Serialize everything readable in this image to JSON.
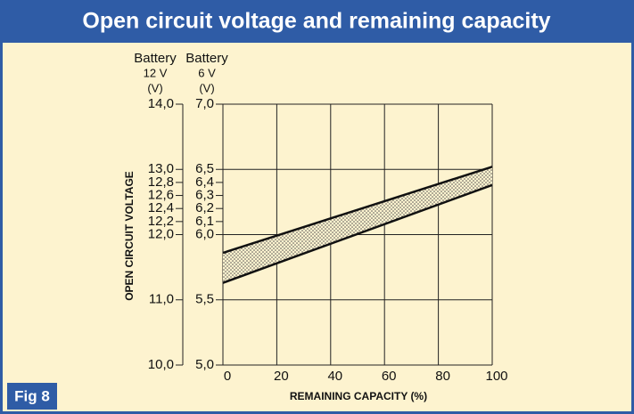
{
  "chart_data": {
    "type": "band",
    "title": "Open circuit voltage and remaining capacity",
    "figure_label": "Fig 8",
    "y_axis_header": [
      "Battery",
      "6 V",
      "(V)"
    ],
    "y2_axis_header": [
      "Battery",
      "12 V",
      "(V)"
    ],
    "ylabel": "OPEN CIRCUIT VOLTAGE",
    "xlabel": "REMAINING CAPACITY (%)",
    "x": [
      0,
      100
    ],
    "series": [
      {
        "color": "#111111",
        "values": [
          5.86,
          6.52
        ]
      },
      {
        "color": "#111111",
        "values": [
          5.63,
          6.38
        ]
      }
    ],
    "band_color": "#555555",
    "xlim": [
      0,
      100
    ],
    "xticks": [
      0,
      20,
      40,
      60,
      80,
      100
    ],
    "ylim": [
      5.0,
      7.0
    ],
    "yticks": [
      {
        "value": 5.0,
        "label": "5,0"
      },
      {
        "value": 5.5,
        "label": "5,5"
      },
      {
        "value": 6.0,
        "label": "6,0"
      },
      {
        "value": 6.5,
        "label": "6,5"
      },
      {
        "value": 7.0,
        "label": "7,0"
      }
    ],
    "yticks_minor": [
      {
        "value": 6.1,
        "label": "6,1"
      },
      {
        "value": 6.2,
        "label": "6,2"
      },
      {
        "value": 6.3,
        "label": "6,3"
      },
      {
        "value": 6.4,
        "label": "6,4"
      }
    ],
    "y2lim": [
      10.0,
      14.0
    ],
    "y2ticks": [
      {
        "value": 10.0,
        "label": "10,0"
      },
      {
        "value": 11.0,
        "label": "11,0"
      },
      {
        "value": 12.0,
        "label": "12,0"
      },
      {
        "value": 13.0,
        "label": "13,0"
      },
      {
        "value": 14.0,
        "label": "14,0"
      }
    ],
    "y2ticks_minor": [
      {
        "value": 12.2,
        "label": "12,2"
      },
      {
        "value": 12.4,
        "label": "12,4"
      },
      {
        "value": 12.6,
        "label": "12,6"
      },
      {
        "value": 12.8,
        "label": "12,8"
      }
    ],
    "grid": true
  }
}
